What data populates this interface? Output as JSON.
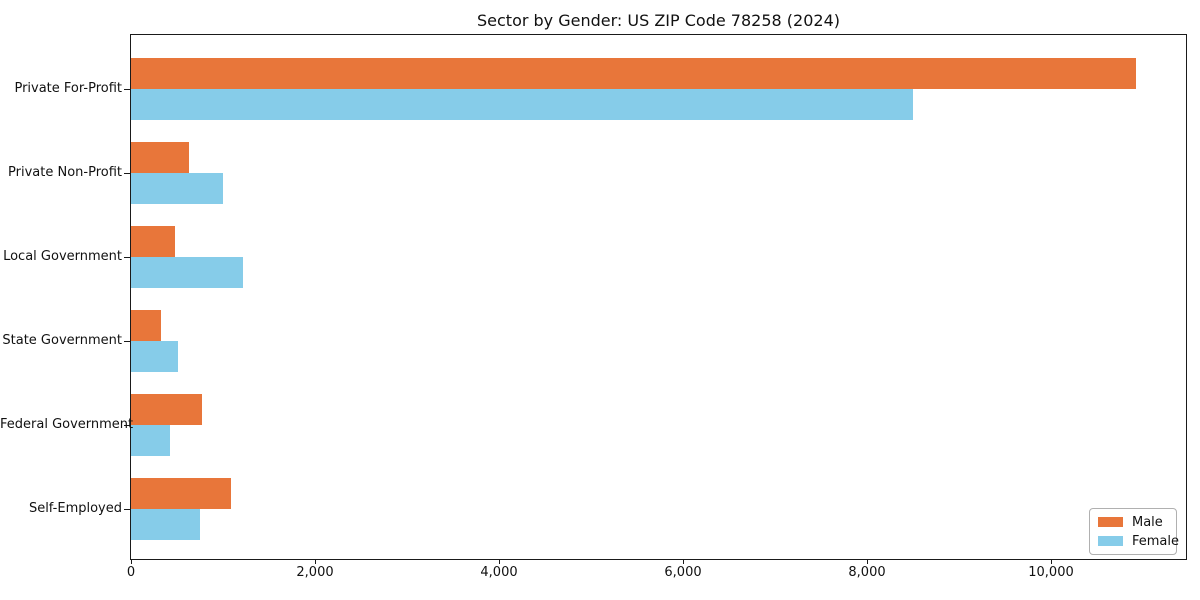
{
  "chart_data": {
    "type": "bar",
    "orientation": "horizontal",
    "title": "Sector by Gender: US ZIP Code 78258 (2024)",
    "categories": [
      "Private For-Profit",
      "Private Non-Profit",
      "Local Government",
      "State Government",
      "Federal Government",
      "Self-Employed"
    ],
    "series": [
      {
        "name": "Male",
        "color": "#e8763a",
        "values": [
          10920,
          625,
          480,
          330,
          775,
          1090
        ]
      },
      {
        "name": "Female",
        "color": "#86cce9",
        "values": [
          8500,
          1000,
          1215,
          510,
          420,
          750
        ]
      }
    ],
    "xlabel": "",
    "ylabel": "",
    "xlim": [
      0,
      11466
    ],
    "xticks": [
      0,
      2000,
      4000,
      6000,
      8000,
      10000
    ],
    "xtick_labels": [
      "0",
      "2,000",
      "4,000",
      "6,000",
      "8,000",
      "10,000"
    ],
    "grid": false,
    "legend_position": "lower right",
    "axis_color": "#1a1a1a"
  }
}
